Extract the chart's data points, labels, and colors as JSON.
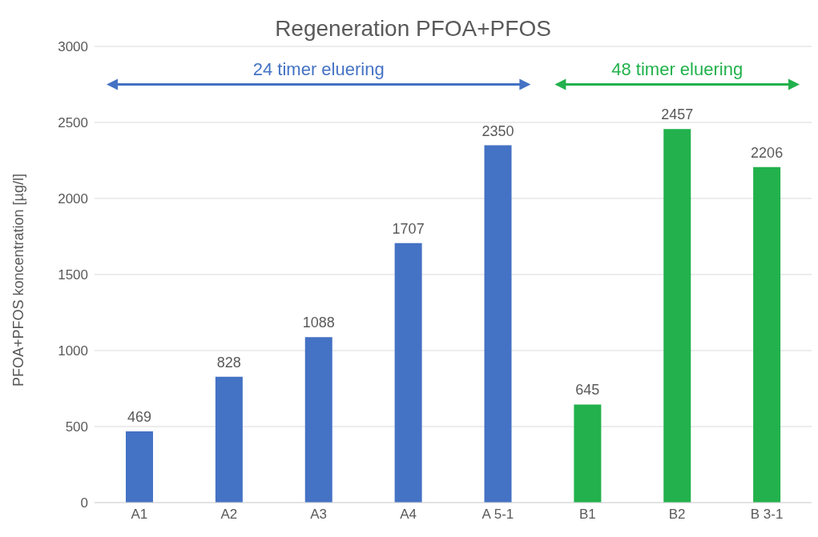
{
  "chart_data": {
    "type": "bar",
    "title": "Regeneration PFOA+PFOS",
    "ylabel": "PFOA+PFOS koncentration [µg/l]",
    "categories": [
      "A1",
      "A2",
      "A3",
      "A4",
      "A 5-1",
      "B1",
      "B2",
      "B 3-1"
    ],
    "values": [
      469,
      828,
      1088,
      1707,
      2350,
      645,
      2457,
      2206
    ],
    "colors": [
      "#4472c4",
      "#4472c4",
      "#4472c4",
      "#4472c4",
      "#4472c4",
      "#22b14c",
      "#22b14c",
      "#22b14c"
    ],
    "ylim": [
      0,
      3000
    ],
    "yticks": [
      0,
      500,
      1000,
      1500,
      2000,
      2500,
      3000
    ],
    "grid": "y",
    "data_labels": true,
    "annotations": [
      "24 timer eluering",
      "48 timer eluering"
    ]
  }
}
